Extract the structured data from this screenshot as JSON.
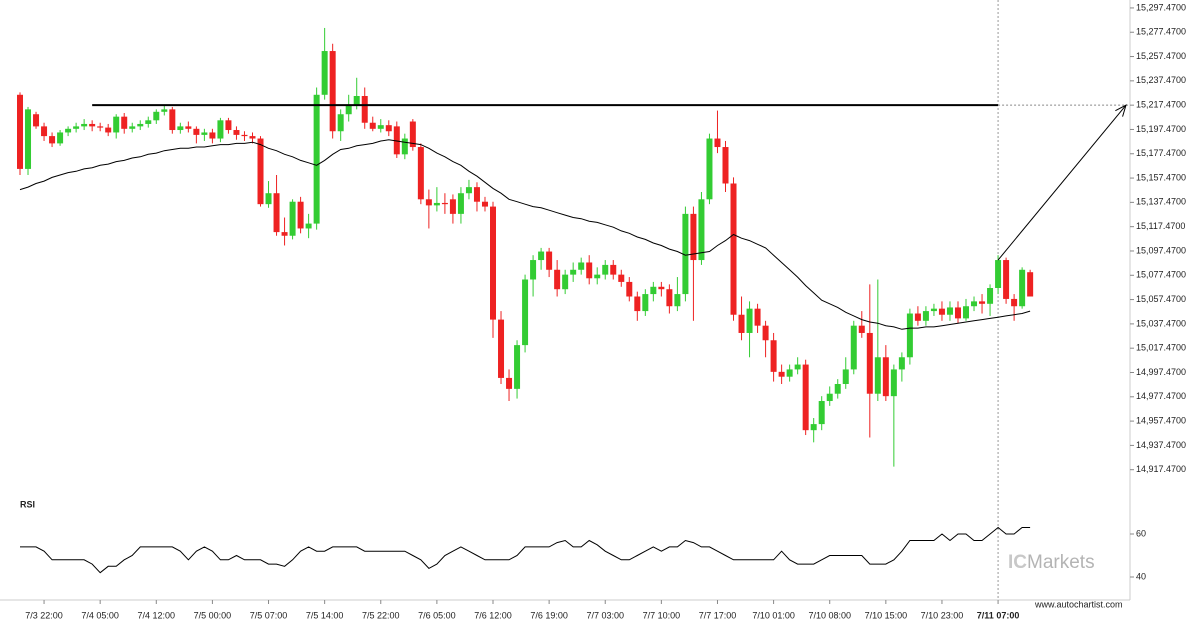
{
  "chart_data": {
    "type": "candlestick",
    "categories": [
      null,
      null,
      null,
      "7/3 22:00",
      null,
      null,
      null,
      null,
      null,
      null,
      "7/4 05:00",
      null,
      null,
      null,
      null,
      null,
      null,
      "7/4 12:00",
      null,
      null,
      null,
      null,
      null,
      null,
      "7/5 00:00",
      null,
      null,
      null,
      null,
      null,
      null,
      "7/5 07:00",
      null,
      null,
      null,
      null,
      null,
      null,
      "7/5 14:00",
      null,
      null,
      null,
      null,
      null,
      null,
      "7/5 22:00",
      null,
      null,
      null,
      null,
      null,
      null,
      "7/6 05:00",
      null,
      null,
      null,
      null,
      null,
      null,
      "7/6 12:00",
      null,
      null,
      null,
      null,
      null,
      null,
      "7/6 19:00",
      null,
      null,
      null,
      null,
      null,
      null,
      "7/7 03:00",
      null,
      null,
      null,
      null,
      null,
      null,
      "7/7 10:00",
      null,
      null,
      null,
      null,
      null,
      null,
      "7/7 17:00",
      null,
      null,
      null,
      null,
      null,
      null,
      "7/10 01:00",
      null,
      null,
      null,
      null,
      null,
      null,
      "7/10 08:00",
      null,
      null,
      null,
      null,
      null,
      null,
      "7/10 15:00",
      null,
      null,
      null,
      null,
      null,
      null,
      "7/10 23:00",
      null,
      null,
      null,
      null,
      null,
      null,
      "7/11 07:00",
      null,
      null,
      null,
      null
    ],
    "candles": [
      [
        15226,
        15228,
        15160,
        15165
      ],
      [
        15165,
        15216,
        15160,
        15214
      ],
      [
        15210,
        15212,
        15198,
        15200
      ],
      [
        15200,
        15203,
        15188,
        15192
      ],
      [
        15192,
        15195,
        15183,
        15186
      ],
      [
        15186,
        15197,
        15184,
        15195
      ],
      [
        15195,
        15200,
        15192,
        15198
      ],
      [
        15198,
        15203,
        15195,
        15200
      ],
      [
        15200,
        15206,
        15197,
        15202
      ],
      [
        15202,
        15205,
        15196,
        15200
      ],
      [
        15200,
        15203,
        15196,
        15199
      ],
      [
        15199,
        15202,
        15192,
        15195
      ],
      [
        15195,
        15210,
        15190,
        15208
      ],
      [
        15208,
        15211,
        15194,
        15198
      ],
      [
        15198,
        15203,
        15195,
        15200
      ],
      [
        15200,
        15205,
        15197,
        15202
      ],
      [
        15202,
        15208,
        15199,
        15205
      ],
      [
        15205,
        15214,
        15202,
        15212
      ],
      [
        15212,
        15218,
        15209,
        15214
      ],
      [
        15214,
        15216,
        15194,
        15197
      ],
      [
        15197,
        15203,
        15194,
        15200
      ],
      [
        15200,
        15204,
        15195,
        15198
      ],
      [
        15198,
        15200,
        15186,
        15193
      ],
      [
        15193,
        15198,
        15188,
        15195
      ],
      [
        15195,
        15198,
        15186,
        15190
      ],
      [
        15190,
        15207,
        15187,
        15205
      ],
      [
        15205,
        15207,
        15194,
        15197
      ],
      [
        15197,
        15200,
        15189,
        15193
      ],
      [
        15193,
        15196,
        15188,
        15192
      ],
      [
        15192,
        15195,
        15186,
        15190
      ],
      [
        15190,
        15192,
        15134,
        15136
      ],
      [
        15136,
        15155,
        15133,
        15145
      ],
      [
        15145,
        15160,
        15110,
        15113
      ],
      [
        15113,
        15125,
        15102,
        15110
      ],
      [
        15110,
        15140,
        15107,
        15138
      ],
      [
        15138,
        15142,
        15112,
        15116
      ],
      [
        15116,
        15128,
        15108,
        15120
      ],
      [
        15120,
        15232,
        15115,
        15226
      ],
      [
        15226,
        15281,
        15222,
        15262
      ],
      [
        15262,
        15268,
        15190,
        15196
      ],
      [
        15196,
        15214,
        15188,
        15210
      ],
      [
        15210,
        15226,
        15204,
        15218
      ],
      [
        15218,
        15240,
        15214,
        15225
      ],
      [
        15225,
        15232,
        15198,
        15203
      ],
      [
        15203,
        15208,
        15196,
        15198
      ],
      [
        15198,
        15206,
        15195,
        15201
      ],
      [
        15201,
        15205,
        15192,
        15196
      ],
      [
        15200,
        15204,
        15174,
        15177
      ],
      [
        15177,
        15194,
        15173,
        15190
      ],
      [
        15204,
        15206,
        15180,
        15183
      ],
      [
        15183,
        15186,
        15136,
        15140
      ],
      [
        15140,
        15148,
        15116,
        15135
      ],
      [
        15135,
        15150,
        15130,
        15137
      ],
      [
        15137,
        15145,
        15128,
        15136
      ],
      [
        15140,
        15144,
        15120,
        15128
      ],
      [
        15128,
        15150,
        15120,
        15145
      ],
      [
        15145,
        15156,
        15140,
        15150
      ],
      [
        15150,
        15154,
        15130,
        15138
      ],
      [
        15138,
        15142,
        15130,
        15134
      ],
      [
        15134,
        15138,
        15026,
        15041
      ],
      [
        15041,
        15048,
        14988,
        14993
      ],
      [
        14993,
        15000,
        14974,
        14984
      ],
      [
        14984,
        15024,
        14976,
        15020
      ],
      [
        15020,
        15078,
        15014,
        15074
      ],
      [
        15074,
        15094,
        15060,
        15090
      ],
      [
        15090,
        15100,
        15082,
        15097
      ],
      [
        15097,
        15100,
        15076,
        15082
      ],
      [
        15082,
        15090,
        15060,
        15066
      ],
      [
        15066,
        15082,
        15062,
        15078
      ],
      [
        15078,
        15088,
        15072,
        15082
      ],
      [
        15082,
        15092,
        15078,
        15088
      ],
      [
        15088,
        15094,
        15070,
        15075
      ],
      [
        15075,
        15084,
        15070,
        15078
      ],
      [
        15078,
        15090,
        15074,
        15086
      ],
      [
        15086,
        15090,
        15074,
        15078
      ],
      [
        15078,
        15082,
        15068,
        15072
      ],
      [
        15072,
        15076,
        15056,
        15060
      ],
      [
        15060,
        15064,
        15040,
        15048
      ],
      [
        15048,
        15066,
        15044,
        15062
      ],
      [
        15062,
        15072,
        15056,
        15068
      ],
      [
        15068,
        15072,
        15060,
        15066
      ],
      [
        15066,
        15070,
        15046,
        15052
      ],
      [
        15052,
        15076,
        15048,
        15062
      ],
      [
        15062,
        15134,
        15056,
        15128
      ],
      [
        15128,
        15134,
        15040,
        15090
      ],
      [
        15090,
        15146,
        15086,
        15140
      ],
      [
        15140,
        15194,
        15136,
        15190
      ],
      [
        15190,
        15213,
        15178,
        15183
      ],
      [
        15183,
        15188,
        15146,
        15153
      ],
      [
        15153,
        15158,
        15040,
        15045
      ],
      [
        15045,
        15060,
        15024,
        15030
      ],
      [
        15030,
        15056,
        15010,
        15050
      ],
      [
        15050,
        15054,
        15030,
        15036
      ],
      [
        15036,
        15040,
        15010,
        15024
      ],
      [
        15024,
        15030,
        14990,
        14998
      ],
      [
        14998,
        15004,
        14988,
        14994
      ],
      [
        14994,
        15004,
        14990,
        15000
      ],
      [
        15000,
        15010,
        14996,
        15004
      ],
      [
        15004,
        15008,
        14946,
        14950
      ],
      [
        14950,
        14960,
        14940,
        14955
      ],
      [
        14955,
        14978,
        14950,
        14974
      ],
      [
        14974,
        14986,
        14970,
        14980
      ],
      [
        14980,
        14992,
        14976,
        14988
      ],
      [
        14988,
        15010,
        14984,
        15000
      ],
      [
        15000,
        15040,
        14996,
        15036
      ],
      [
        15036,
        15048,
        15026,
        15030
      ],
      [
        15030,
        15070,
        14944,
        14980
      ],
      [
        14980,
        15074,
        14974,
        15010
      ],
      [
        15010,
        15020,
        14974,
        14978
      ],
      [
        14978,
        15004,
        14920,
        15000
      ],
      [
        15000,
        15014,
        14990,
        15010
      ],
      [
        15010,
        15050,
        15004,
        15046
      ],
      [
        15046,
        15052,
        15036,
        15040
      ],
      [
        15040,
        15052,
        15036,
        15048
      ],
      [
        15048,
        15054,
        15044,
        15050
      ],
      [
        15050,
        15056,
        15040,
        15045
      ],
      [
        15045,
        15056,
        15040,
        15051
      ],
      [
        15051,
        15056,
        15038,
        15042
      ],
      [
        15042,
        15058,
        15040,
        15052
      ],
      [
        15052,
        15060,
        15048,
        15056
      ],
      [
        15056,
        15062,
        15046,
        15054
      ],
      [
        15054,
        15070,
        15044,
        15067
      ],
      [
        15067,
        15094,
        15062,
        15090
      ],
      [
        15090,
        15092,
        15054,
        15058
      ],
      [
        15058,
        15062,
        15040,
        15052
      ],
      [
        15052,
        15084,
        15050,
        15082
      ],
      [
        15080,
        15082,
        15060,
        15060
      ]
    ],
    "up_color": "#33cc33",
    "down_color": "#ee2222",
    "ylim": [
      14909,
      15304
    ],
    "yticks": [
      {
        "value": 15297.47,
        "label": "15,297.4700"
      },
      {
        "value": 15277.47,
        "label": "15,277.4700"
      },
      {
        "value": 15257.47,
        "label": "15,257.4700"
      },
      {
        "value": 15237.47,
        "label": "15,237.4700"
      },
      {
        "value": 15217.47,
        "label": "15,217.4700"
      },
      {
        "value": 15197.47,
        "label": "15,197.4700"
      },
      {
        "value": 15177.47,
        "label": "15,177.4700"
      },
      {
        "value": 15157.47,
        "label": "15,157.4700"
      },
      {
        "value": 15137.47,
        "label": "15,137.4700"
      },
      {
        "value": 15117.47,
        "label": "15,117.4700"
      },
      {
        "value": 15097.47,
        "label": "15,097.4700"
      },
      {
        "value": 15077.47,
        "label": "15,077.4700"
      },
      {
        "value": 15057.47,
        "label": "15,057.4700"
      },
      {
        "value": 15037.47,
        "label": "15,037.4700"
      },
      {
        "value": 15017.47,
        "label": "15,017.4700"
      },
      {
        "value": 14997.47,
        "label": "14,997.4700"
      },
      {
        "value": 14977.47,
        "label": "14,977.4700"
      },
      {
        "value": 14957.47,
        "label": "14,957.4700"
      },
      {
        "value": 14937.47,
        "label": "14,937.4700"
      },
      {
        "value": 14917.47,
        "label": "14,917.4700"
      }
    ],
    "ma": {
      "color": "#000000",
      "values": [
        15148,
        15150,
        15153,
        15155,
        15158,
        15160,
        15162,
        15163,
        15165,
        15166,
        15168,
        15169,
        15171,
        15172,
        15174,
        15175,
        15177,
        15178,
        15180,
        15181,
        15182,
        15182,
        15183,
        15183,
        15184,
        15185,
        15185,
        15186,
        15186,
        15187,
        15185,
        15182,
        15180,
        15177,
        15175,
        15172,
        15170,
        15168,
        15172,
        15177,
        15181,
        15182,
        15184,
        15185,
        15186,
        15188,
        15189,
        15188,
        15187,
        15186,
        15185,
        15182,
        15178,
        15175,
        15171,
        15168,
        15163,
        15159,
        15154,
        15149,
        15145,
        15140,
        15138,
        15136,
        15134,
        15133,
        15131,
        15129,
        15127,
        15125,
        15124,
        15122,
        15121,
        15119,
        15117,
        15114,
        15112,
        15109,
        15107,
        15104,
        15102,
        15099,
        15097,
        15094,
        15095,
        15096,
        15097,
        15102,
        15106,
        15111,
        15108,
        15106,
        15103,
        15100,
        15094,
        15088,
        15082,
        15076,
        15069,
        15063,
        15057,
        15054,
        15051,
        15047,
        15044,
        15041,
        15039,
        15038,
        15036,
        15035,
        15033,
        15034,
        15034,
        15035,
        15035,
        15036,
        15037,
        15038,
        15039,
        15040,
        15041,
        15042,
        15043,
        15044,
        15045,
        15046,
        15048
      ]
    },
    "level": 15217.47,
    "rsi": {
      "title": "RSI",
      "color": "#000000",
      "ylim": [
        30,
        80
      ],
      "yticks": [
        60,
        40
      ],
      "values": [
        54,
        54,
        54,
        52,
        48,
        48,
        48,
        48,
        48,
        46,
        42,
        45,
        45,
        48,
        50,
        54,
        54,
        54,
        54,
        54,
        52,
        48,
        52,
        54,
        52,
        48,
        48,
        50,
        48,
        48,
        48,
        46,
        46,
        45,
        48,
        52,
        54,
        52,
        52,
        54,
        54,
        54,
        54,
        52,
        52,
        52,
        52,
        52,
        52,
        50,
        48,
        44,
        46,
        50,
        52,
        54,
        52,
        50,
        48,
        48,
        48,
        48,
        50,
        54,
        54,
        54,
        54,
        56,
        57,
        54,
        54,
        57,
        55,
        52,
        50,
        48,
        48,
        50,
        52,
        54,
        52,
        54,
        54,
        57,
        56,
        54,
        54,
        52,
        50,
        48,
        48,
        48,
        48,
        48,
        48,
        52,
        48,
        46,
        46,
        46,
        48,
        50,
        50,
        50,
        50,
        50,
        46,
        46,
        46,
        48,
        52,
        57,
        57,
        57,
        57,
        60,
        57,
        60,
        60,
        57,
        57,
        60,
        63,
        60,
        60,
        63,
        63
      ]
    },
    "watermark": [
      "IC",
      "Markets"
    ],
    "source": "www.autochartist.com"
  }
}
